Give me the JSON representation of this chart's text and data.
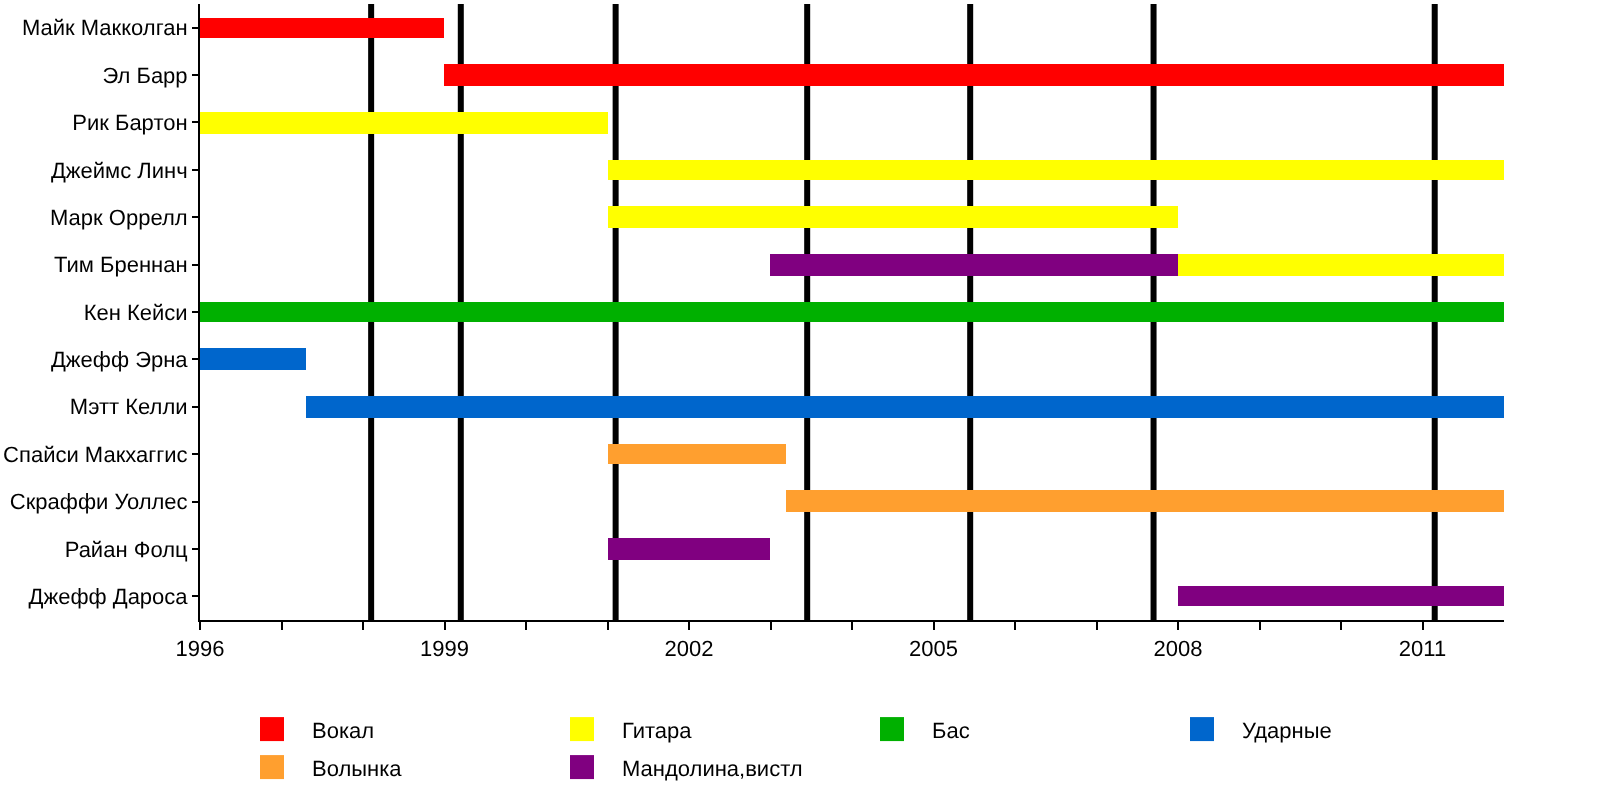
{
  "chart_data": {
    "type": "bar",
    "orientation": "horizontal",
    "grid": false,
    "legend": "bottom",
    "categories": [
      "Майк Макколган",
      "Эл Барр",
      "Рик Бартон",
      "Джеймс Линч",
      "Марк Оррелл",
      "Тим Бреннан",
      "Кен Кейси",
      "Джефф Эрна",
      "Мэтт Келли",
      "Спайси Макхаггис",
      "Скраффи Уоллес",
      "Райан Фолц",
      "Джефф Дароса"
    ],
    "xlim": [
      1996,
      2012
    ],
    "xticks": [
      1996,
      {
        "value": 1997,
        "label": null
      },
      {
        "value": 1998,
        "label": null
      },
      1999,
      {
        "value": 2000,
        "label": null
      },
      {
        "value": 2001,
        "label": null
      },
      2002,
      {
        "value": 2003,
        "label": null
      },
      {
        "value": 2004,
        "label": null
      },
      2005,
      {
        "value": 2006,
        "label": null
      },
      {
        "value": 2007,
        "label": null
      },
      2008,
      {
        "value": 2009,
        "label": null
      },
      {
        "value": 2010,
        "label": null
      },
      2011
    ],
    "series": [
      {
        "name": "Вокал",
        "color": "#ff0000",
        "values": [
          3,
          13,
          null,
          null,
          null,
          null,
          null,
          null,
          null,
          null,
          null,
          null,
          null
        ],
        "base": [
          1996,
          1999,
          null,
          null,
          null,
          null,
          null,
          null,
          null,
          null,
          null,
          null,
          null
        ]
      },
      {
        "name": "Гитара",
        "color": "#ffff00",
        "values": [
          null,
          null,
          5,
          11,
          7,
          4,
          null,
          null,
          null,
          null,
          null,
          null,
          null
        ],
        "base": [
          null,
          null,
          1996,
          2001,
          2001,
          2008,
          null,
          null,
          null,
          null,
          null,
          null,
          null
        ]
      },
      {
        "name": "Бас",
        "color": "#00b000",
        "values": [
          null,
          null,
          null,
          null,
          null,
          null,
          16,
          null,
          null,
          null,
          null,
          null,
          null
        ],
        "base": [
          null,
          null,
          null,
          null,
          null,
          null,
          1996,
          null,
          null,
          null,
          null,
          null,
          null
        ]
      },
      {
        "name": "Ударные",
        "color": "#0066cc",
        "values": [
          null,
          null,
          null,
          null,
          null,
          null,
          null,
          1.3,
          14.7,
          null,
          null,
          null,
          null
        ],
        "base": [
          null,
          null,
          null,
          null,
          null,
          null,
          null,
          1996,
          1997.3,
          null,
          null,
          null,
          null
        ]
      },
      {
        "name": "Волынка",
        "color": "#ff9f2f",
        "values": [
          null,
          null,
          null,
          null,
          null,
          null,
          null,
          null,
          null,
          2.2,
          8.8,
          null,
          null
        ],
        "base": [
          null,
          null,
          null,
          null,
          null,
          null,
          null,
          null,
          null,
          2001,
          2003.2,
          null,
          null
        ]
      },
      {
        "name": "Мандолина,вистл",
        "color": "#800080",
        "values": [
          null,
          null,
          null,
          null,
          null,
          5,
          null,
          null,
          null,
          null,
          null,
          2,
          4
        ],
        "base": [
          null,
          null,
          null,
          null,
          null,
          2003,
          null,
          null,
          null,
          null,
          null,
          2001,
          2008
        ]
      }
    ],
    "ref_lines": [
      {
        "axis": "x",
        "value": 1998.1,
        "color": "#000000"
      },
      {
        "axis": "x",
        "value": 1999.2,
        "color": "#000000"
      },
      {
        "axis": "x",
        "value": 2001.1,
        "color": "#000000"
      },
      {
        "axis": "x",
        "value": 2003.45,
        "color": "#000000"
      },
      {
        "axis": "x",
        "value": 2005.45,
        "color": "#000000"
      },
      {
        "axis": "x",
        "value": 2007.7,
        "color": "#000000"
      },
      {
        "axis": "x",
        "value": 2011.15,
        "color": "#000000"
      }
    ]
  }
}
